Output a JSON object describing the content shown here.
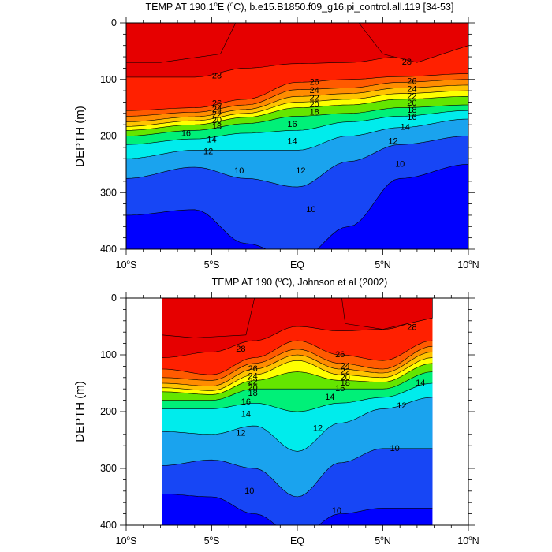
{
  "chart_data": [
    {
      "type": "heatmap",
      "title_parts": [
        "TEMP AT 190.1",
        "o",
        "E (",
        "o",
        "C), b.e15.B1850.f09_g16.pi_control.all.119 [34-53]"
      ],
      "ylabel": "DEPTH (m)",
      "xlim": [
        -10,
        10
      ],
      "ylim": [
        400,
        0
      ],
      "xticks": [
        {
          "value": -10,
          "label": "10",
          "sup": "o",
          "suffix": "S"
        },
        {
          "value": -5,
          "label": "5",
          "sup": "o",
          "suffix": "S"
        },
        {
          "value": 0,
          "label": "EQ",
          "sup": "",
          "suffix": ""
        },
        {
          "value": 5,
          "label": "5",
          "sup": "o",
          "suffix": "N"
        },
        {
          "value": 10,
          "label": "10",
          "sup": "o",
          "suffix": "N"
        }
      ],
      "yticks": [
        0,
        100,
        200,
        300,
        400
      ],
      "data_xrange": [
        -10,
        10
      ],
      "profiles": [
        {
          "lat": -10,
          "z": {
            "29.5": 0,
            "28": 96,
            "26": 155,
            "24": 165,
            "22": 175,
            "20": 183,
            "18": 190,
            "16": 200,
            "14": 215,
            "12": 240,
            "10": 275,
            "8": 340
          }
        },
        {
          "lat": -6,
          "z": {
            "29.5": 0,
            "28": 96,
            "26": 150,
            "24": 158,
            "22": 166,
            "20": 173,
            "18": 180,
            "16": 190,
            "14": 205,
            "12": 225,
            "10": 255,
            "8": 330
          }
        },
        {
          "lat": -3,
          "z": {
            "29.5": 0,
            "28": 80,
            "26": 135,
            "24": 145,
            "22": 153,
            "20": 160,
            "18": 167,
            "16": 178,
            "14": 195,
            "12": 225,
            "10": 275,
            "8": 390
          }
        },
        {
          "lat": 0,
          "z": {
            "29.5": 0,
            "28": 72,
            "26": 105,
            "24": 118,
            "22": 130,
            "20": 140,
            "18": 150,
            "16": 165,
            "14": 190,
            "12": 225,
            "10": 290,
            "8": 420
          }
        },
        {
          "lat": 3,
          "z": {
            "29.5": 0,
            "28": 70,
            "26": 100,
            "24": 115,
            "22": 125,
            "20": 135,
            "18": 145,
            "16": 160,
            "14": 175,
            "12": 200,
            "10": 245,
            "8": 360
          }
        },
        {
          "lat": 6,
          "z": {
            "29.5": 0,
            "28": 60,
            "26": 95,
            "24": 105,
            "22": 115,
            "20": 125,
            "18": 135,
            "16": 150,
            "14": 165,
            "12": 185,
            "10": 215,
            "8": 275
          }
        },
        {
          "lat": 10,
          "z": {
            "29.5": 0,
            "28": 40,
            "26": 90,
            "24": 100,
            "22": 110,
            "20": 120,
            "18": 130,
            "16": 145,
            "14": 155,
            "12": 170,
            "10": 200,
            "8": 250
          }
        }
      ],
      "warm_core": [
        {
          "lat": -10,
          "z": 70
        },
        {
          "lat": -8,
          "z": 70
        },
        {
          "lat": -4.5,
          "z": 55
        },
        {
          "lat": -3.6,
          "z": 0
        }
      ],
      "warm_core_n": [
        {
          "lat": 3.6,
          "z": 0
        },
        {
          "lat": 5,
          "z": 55
        },
        {
          "lat": 7,
          "z": 70
        },
        {
          "lat": 10,
          "z": 40
        }
      ],
      "contour_labels": [
        {
          "text": "28",
          "lat": -4.7,
          "z": 94
        },
        {
          "text": "28",
          "lat": 6.4,
          "z": 70
        },
        {
          "text": "26",
          "lat": -4.7,
          "z": 143
        },
        {
          "text": "24",
          "lat": -4.7,
          "z": 153
        },
        {
          "text": "22",
          "lat": -4.7,
          "z": 163
        },
        {
          "text": "20",
          "lat": -4.7,
          "z": 173
        },
        {
          "text": "18",
          "lat": -4.7,
          "z": 183
        },
        {
          "text": "16",
          "lat": -6.5,
          "z": 196
        },
        {
          "text": "14",
          "lat": -5.0,
          "z": 207
        },
        {
          "text": "12",
          "lat": -5.2,
          "z": 228
        },
        {
          "text": "10",
          "lat": -3.4,
          "z": 262
        },
        {
          "text": "26",
          "lat": 1.0,
          "z": 105
        },
        {
          "text": "24",
          "lat": 1.0,
          "z": 120
        },
        {
          "text": "22",
          "lat": 1.0,
          "z": 133
        },
        {
          "text": "20",
          "lat": 1.0,
          "z": 145
        },
        {
          "text": "18",
          "lat": 1.0,
          "z": 158
        },
        {
          "text": "16",
          "lat": -0.3,
          "z": 180
        },
        {
          "text": "14",
          "lat": -0.3,
          "z": 210
        },
        {
          "text": "12",
          "lat": 0.2,
          "z": 262
        },
        {
          "text": "10",
          "lat": 0.8,
          "z": 330
        },
        {
          "text": "26",
          "lat": 6.7,
          "z": 104
        },
        {
          "text": "24",
          "lat": 6.7,
          "z": 118
        },
        {
          "text": "22",
          "lat": 6.7,
          "z": 130
        },
        {
          "text": "20",
          "lat": 6.7,
          "z": 142
        },
        {
          "text": "18",
          "lat": 6.7,
          "z": 155
        },
        {
          "text": "16",
          "lat": 6.7,
          "z": 167
        },
        {
          "text": "14",
          "lat": 6.3,
          "z": 185
        },
        {
          "text": "12",
          "lat": 5.6,
          "z": 210
        },
        {
          "text": "10",
          "lat": 6.0,
          "z": 250
        }
      ]
    },
    {
      "type": "heatmap",
      "title_parts": [
        "TEMP AT 190 (",
        "o",
        "C), Johnson et al (2002)"
      ],
      "ylabel": "DEPTH (m)",
      "xlim": [
        -10,
        10
      ],
      "ylim": [
        400,
        0
      ],
      "xticks": [
        {
          "value": -10,
          "label": "10",
          "sup": "o",
          "suffix": "S"
        },
        {
          "value": -5,
          "label": "5",
          "sup": "o",
          "suffix": "S"
        },
        {
          "value": 0,
          "label": "EQ",
          "sup": "",
          "suffix": ""
        },
        {
          "value": 5,
          "label": "5",
          "sup": "o",
          "suffix": "N"
        },
        {
          "value": 10,
          "label": "10",
          "sup": "o",
          "suffix": "N"
        }
      ],
      "yticks": [
        0,
        100,
        200,
        300,
        400
      ],
      "data_xrange": [
        -7.9,
        7.9
      ],
      "profiles": [
        {
          "lat": -7.9,
          "z": {
            "29.5": 0,
            "28": 105,
            "26": 125,
            "24": 140,
            "22": 150,
            "20": 158,
            "18": 165,
            "16": 180,
            "14": 195,
            "12": 235,
            "10": 295,
            "8": 345
          }
        },
        {
          "lat": -5,
          "z": {
            "29.5": 0,
            "28": 95,
            "26": 135,
            "24": 145,
            "22": 155,
            "20": 163,
            "18": 170,
            "16": 180,
            "14": 195,
            "12": 240,
            "10": 285,
            "8": 350
          }
        },
        {
          "lat": -2.5,
          "z": {
            "29.5": 0,
            "28": 75,
            "26": 105,
            "24": 115,
            "22": 125,
            "20": 135,
            "18": 145,
            "16": 160,
            "14": 185,
            "12": 225,
            "10": 300,
            "8": 380
          }
        },
        {
          "lat": 0,
          "z": {
            "29.5": 0,
            "28": 50,
            "26": 75,
            "24": 90,
            "22": 100,
            "20": 110,
            "18": 130,
            "16": 160,
            "14": 200,
            "12": 270,
            "10": 350,
            "8": 420
          }
        },
        {
          "lat": 2.5,
          "z": {
            "29.5": 0,
            "28": 58,
            "26": 100,
            "24": 115,
            "22": 125,
            "20": 135,
            "18": 145,
            "16": 160,
            "14": 185,
            "12": 220,
            "10": 290,
            "8": 380
          }
        },
        {
          "lat": 5,
          "z": {
            "29.5": 0,
            "28": 55,
            "26": 110,
            "24": 125,
            "22": 132,
            "20": 140,
            "18": 148,
            "16": 160,
            "14": 175,
            "12": 195,
            "10": 265,
            "8": 370
          }
        },
        {
          "lat": 7.9,
          "z": {
            "29.5": 0,
            "28": 35,
            "26": 75,
            "24": 85,
            "22": 95,
            "20": 105,
            "18": 115,
            "16": 130,
            "14": 150,
            "12": 175,
            "10": 265,
            "8": 370
          }
        }
      ],
      "warm_core": [
        {
          "lat": -7.9,
          "z": 65
        },
        {
          "lat": -6,
          "z": 70
        },
        {
          "lat": -3,
          "z": 65
        },
        {
          "lat": -2.5,
          "z": 0
        }
      ],
      "warm_core_n": [
        {
          "lat": 2.6,
          "z": 0
        },
        {
          "lat": 2.8,
          "z": 45
        },
        {
          "lat": 5,
          "z": 55
        },
        {
          "lat": 7.9,
          "z": 35
        }
      ],
      "contour_labels": [
        {
          "text": "28",
          "lat": -3.3,
          "z": 90
        },
        {
          "text": "28",
          "lat": 6.7,
          "z": 52
        },
        {
          "text": "26",
          "lat": 2.5,
          "z": 100
        },
        {
          "text": "26",
          "lat": -2.6,
          "z": 125
        },
        {
          "text": "24",
          "lat": -2.6,
          "z": 138
        },
        {
          "text": "22",
          "lat": -2.6,
          "z": 148
        },
        {
          "text": "20",
          "lat": -2.6,
          "z": 158
        },
        {
          "text": "18",
          "lat": -2.6,
          "z": 168
        },
        {
          "text": "24",
          "lat": 2.8,
          "z": 120
        },
        {
          "text": "22",
          "lat": 2.8,
          "z": 130
        },
        {
          "text": "20",
          "lat": 2.8,
          "z": 140
        },
        {
          "text": "18",
          "lat": 2.8,
          "z": 150
        },
        {
          "text": "16",
          "lat": 2.5,
          "z": 160
        },
        {
          "text": "16",
          "lat": -3.0,
          "z": 183
        },
        {
          "text": "14",
          "lat": -3.0,
          "z": 205
        },
        {
          "text": "14",
          "lat": 1.9,
          "z": 175
        },
        {
          "text": "14",
          "lat": 7.2,
          "z": 150
        },
        {
          "text": "12",
          "lat": -3.3,
          "z": 238
        },
        {
          "text": "12",
          "lat": 1.2,
          "z": 230
        },
        {
          "text": "12",
          "lat": 6.1,
          "z": 190
        },
        {
          "text": "10",
          "lat": 5.7,
          "z": 265
        },
        {
          "text": "10",
          "lat": -2.8,
          "z": 340
        },
        {
          "text": "10",
          "lat": 2.3,
          "z": 375
        }
      ]
    }
  ],
  "levels": [
    8,
    9,
    10,
    11,
    12,
    13,
    14,
    15,
    16,
    17,
    18,
    19,
    20,
    21,
    22,
    23,
    24,
    25,
    26,
    27,
    28,
    29,
    29.5
  ],
  "palette": [
    "#0000ff",
    "#1746f5",
    "#1f78ea",
    "#1aa3ee",
    "#00c8f7",
    "#00ecec",
    "#00ffc8",
    "#00f078",
    "#00d400",
    "#64e600",
    "#c8f000",
    "#ffff00",
    "#ffe100",
    "#ffc300",
    "#ffa500",
    "#ff8c00",
    "#ff7300",
    "#ff5a00",
    "#ff3c00",
    "#ff2000",
    "#ff0000",
    "#e60000"
  ]
}
